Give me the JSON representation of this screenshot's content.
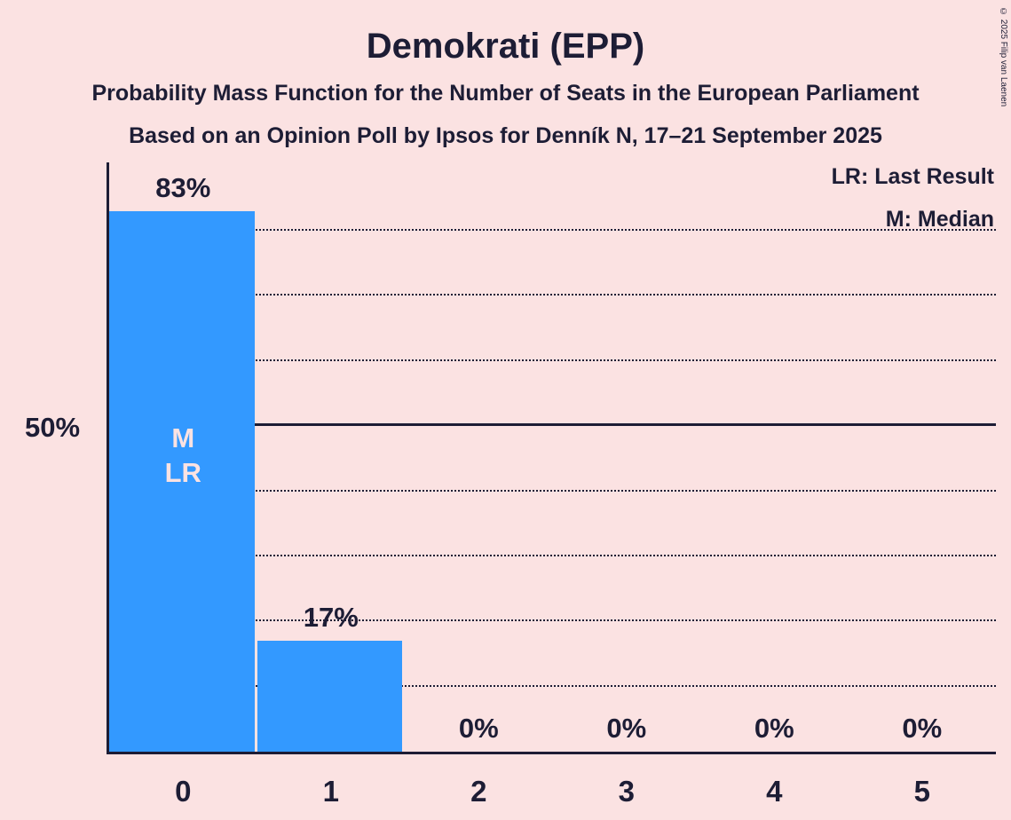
{
  "title": "Demokrati (EPP)",
  "subtitle1": "Probability Mass Function for the Number of Seats in the European Parliament",
  "subtitle2": "Based on an Opinion Poll by Ipsos for Denník N, 17–21 September 2025",
  "legend": {
    "lr": "LR: Last Result",
    "m": "M: Median"
  },
  "y_axis_label": "50%",
  "copyright": "© 2025 Filip van Laenen",
  "colors": {
    "background": "#fbe2e2",
    "bar": "#3399ff",
    "text": "#1d1d35",
    "bar_annotation": "#fbe2e2"
  },
  "chart_data": {
    "type": "bar",
    "title": "Demokrati (EPP)",
    "xlabel": "",
    "ylabel": "",
    "categories": [
      "0",
      "1",
      "2",
      "3",
      "4",
      "5"
    ],
    "values": [
      83,
      17,
      0,
      0,
      0,
      0
    ],
    "value_labels": [
      "83%",
      "17%",
      "0%",
      "0%",
      "0%",
      "0%"
    ],
    "ylim": [
      0,
      90.5
    ],
    "gridlines_pct": [
      10,
      20,
      30,
      40,
      60,
      70,
      80
    ],
    "solid_line_pct": 50,
    "bar_annotations": {
      "0": "M\nLR"
    },
    "legend_position": "top-right",
    "grid": "dotted-horizontal"
  }
}
